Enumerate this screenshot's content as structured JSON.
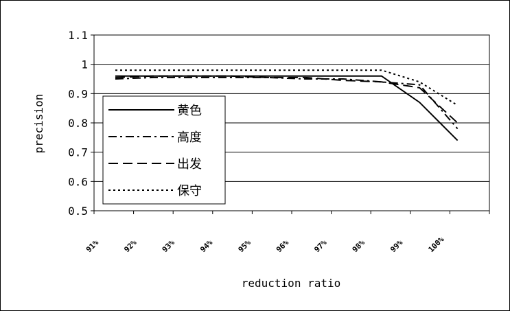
{
  "chart_data": {
    "type": "line",
    "title": "",
    "xlabel": "reduction ratio",
    "ylabel": "precision",
    "categories": [
      "91%",
      "92%",
      "93%",
      "94%",
      "95%",
      "96%",
      "97%",
      "98%",
      "99%",
      "100%"
    ],
    "ylim": [
      0.5,
      1.1
    ],
    "yticks": [
      "0.5",
      "0.6",
      "0.7",
      "0.8",
      "0.9",
      "1",
      "1.1"
    ],
    "grid": "horizontal",
    "legend_position": "inside-left",
    "series": [
      {
        "name": "黄色",
        "style": "solid",
        "values": [
          0.96,
          0.96,
          0.96,
          0.96,
          0.96,
          0.96,
          0.96,
          0.96,
          0.87,
          0.74
        ]
      },
      {
        "name": "高度",
        "style": "dashdot",
        "values": [
          0.95,
          0.955,
          0.955,
          0.955,
          0.955,
          0.95,
          0.95,
          0.94,
          0.93,
          0.78
        ]
      },
      {
        "name": "出发",
        "style": "dashed",
        "values": [
          0.955,
          0.96,
          0.96,
          0.96,
          0.955,
          0.955,
          0.945,
          0.94,
          0.92,
          0.8
        ]
      },
      {
        "name": "保守",
        "style": "dotted",
        "values": [
          0.98,
          0.98,
          0.98,
          0.98,
          0.98,
          0.98,
          0.98,
          0.98,
          0.94,
          0.86
        ]
      }
    ]
  }
}
